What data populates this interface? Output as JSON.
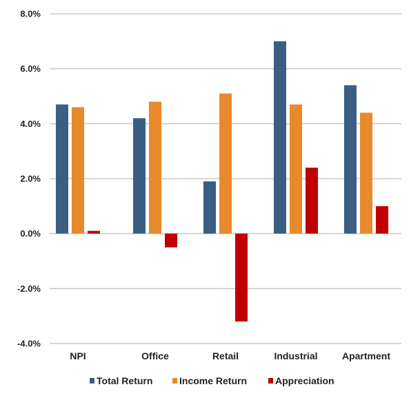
{
  "chart_data": {
    "type": "bar",
    "title": "",
    "xlabel": "",
    "ylabel": "",
    "categories": [
      "NPI",
      "Office",
      "Retail",
      "Industrial",
      "Apartment"
    ],
    "series": [
      {
        "name": "Total Return",
        "color": "#3a5f82",
        "values": [
          4.7,
          4.2,
          1.9,
          7.0,
          5.4
        ]
      },
      {
        "name": "Income Return",
        "color": "#e8892b",
        "values": [
          4.6,
          4.8,
          5.1,
          4.7,
          4.4
        ]
      },
      {
        "name": "Appreciation",
        "color": "#c00000",
        "values": [
          0.1,
          -0.5,
          -3.2,
          2.4,
          1.0
        ]
      }
    ],
    "ylim": [
      -4.0,
      8.0
    ],
    "yticks": [
      8.0,
      6.0,
      4.0,
      2.0,
      0.0,
      -2.0,
      -4.0
    ],
    "ytick_labels": [
      "8.0%",
      "6.0%",
      "4.0%",
      "2.0%",
      "0.0%",
      "-2.0%",
      "-4.0%"
    ],
    "grid": true,
    "legend_position": "bottom"
  }
}
